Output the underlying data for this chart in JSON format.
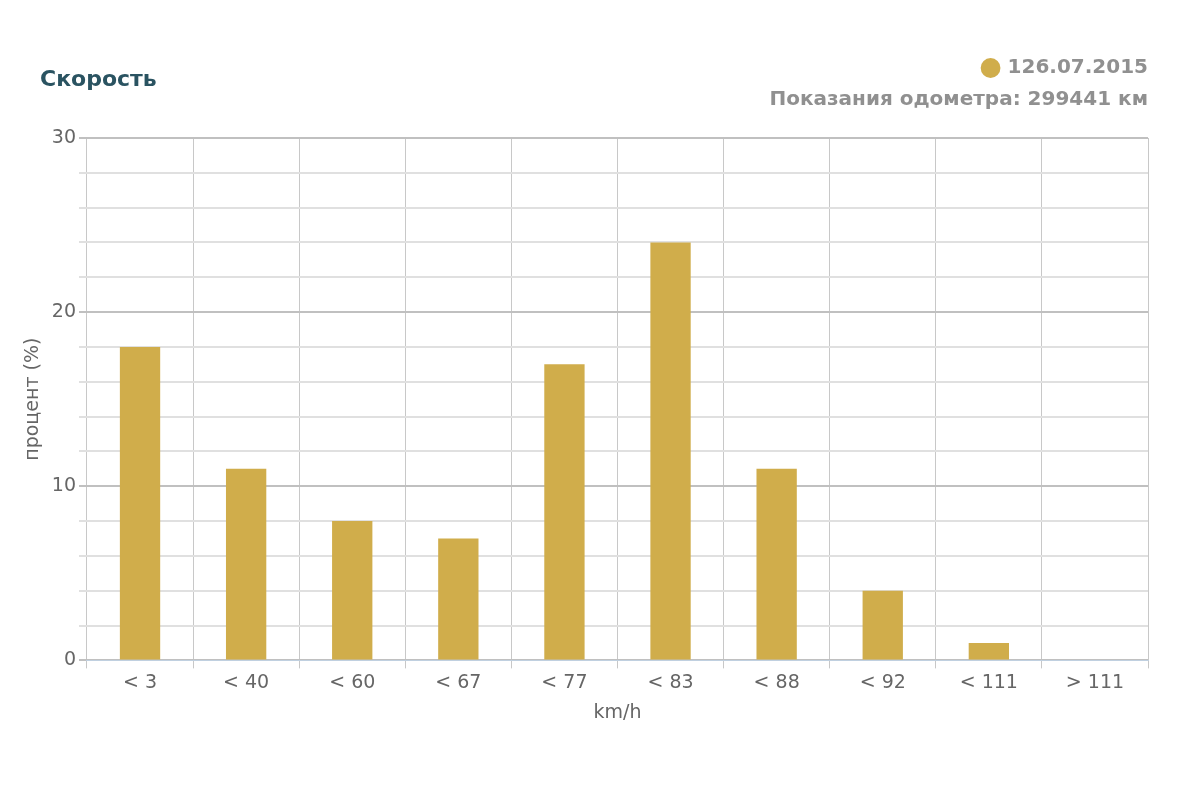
{
  "chart_data": {
    "type": "bar",
    "title": "Скорость",
    "xlabel": "km/h",
    "ylabel": "процент (%)",
    "categories": [
      "< 3",
      "< 40",
      "< 60",
      "< 67",
      "< 77",
      "< 83",
      "< 88",
      "< 92",
      "< 111",
      "> 111"
    ],
    "series": [
      {
        "name": "126.07.2015",
        "color": "#d0ad4b",
        "values": [
          18,
          11,
          8,
          7,
          17,
          24,
          11,
          4,
          1,
          0
        ]
      }
    ],
    "annotations": [
      "Показания одометра: 299441 км"
    ],
    "ylim": [
      0,
      30
    ],
    "yticks": [
      0,
      {
        "value": 2,
        "label": null
      },
      {
        "value": 4,
        "label": null
      },
      {
        "value": 6,
        "label": null
      },
      {
        "value": 8,
        "label": null
      },
      10,
      {
        "value": 12,
        "label": null
      },
      {
        "value": 14,
        "label": null
      },
      {
        "value": 16,
        "label": null
      },
      {
        "value": 18,
        "label": null
      },
      20,
      {
        "value": 22,
        "label": null
      },
      {
        "value": 24,
        "label": null
      },
      {
        "value": 26,
        "label": null
      },
      {
        "value": 28,
        "label": null
      },
      30
    ],
    "grid": true,
    "legend": "top right"
  }
}
